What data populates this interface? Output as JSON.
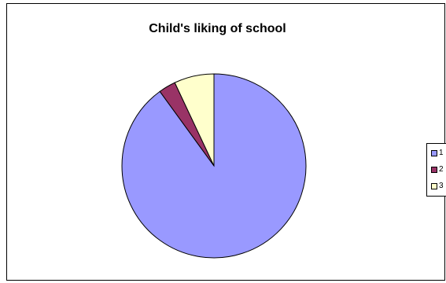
{
  "chart_data": {
    "type": "pie",
    "title": "Child's liking of school",
    "categories": [
      "1",
      "2",
      "3"
    ],
    "values": [
      90,
      3,
      7
    ],
    "colors": [
      "#9999ff",
      "#993366",
      "#ffffcc"
    ],
    "start_angle_deg": 0,
    "direction": "clockwise",
    "legend": {
      "placement": "right",
      "entries": [
        "1",
        "2",
        "3"
      ]
    }
  }
}
